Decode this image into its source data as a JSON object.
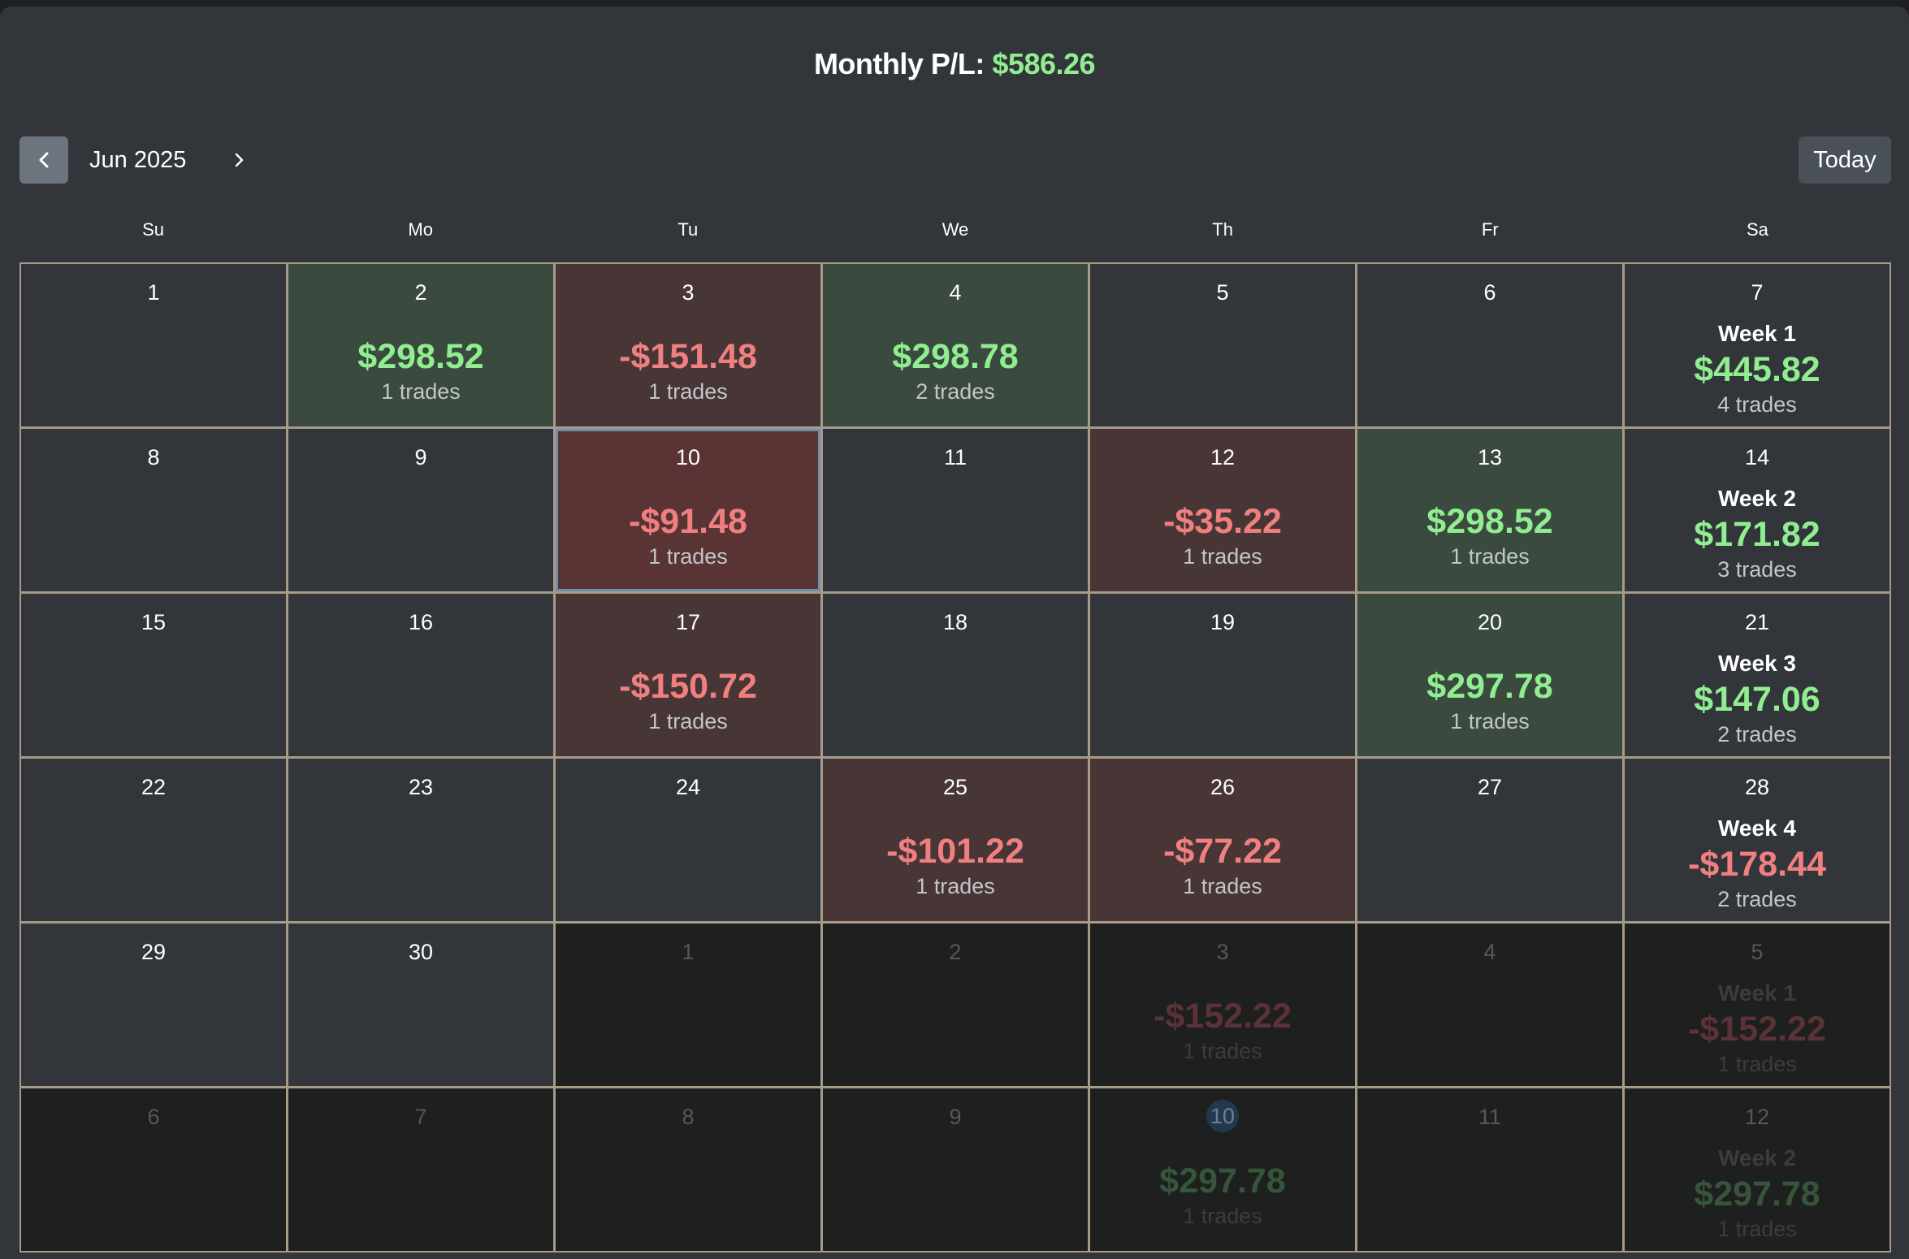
{
  "header": {
    "label": "Monthly P/L:",
    "value": "$586.26"
  },
  "toolbar": {
    "month": "Jun 2025",
    "today_label": "Today",
    "prev_icon": "chevron-left-icon",
    "next_icon": "chevron-right-icon"
  },
  "weekdays": [
    "Su",
    "Mo",
    "Tu",
    "We",
    "Th",
    "Fr",
    "Sa"
  ],
  "colors": {
    "profit": "#90ee90",
    "loss": "#f08080",
    "profit_bg": "#3b4a3e",
    "loss_bg": "#483536"
  },
  "weeks": [
    {
      "days": [
        {
          "date": "1"
        },
        {
          "date": "2",
          "pl": "$298.52",
          "trades": "1 trades",
          "type": "profit"
        },
        {
          "date": "3",
          "pl": "-$151.48",
          "trades": "1 trades",
          "type": "loss"
        },
        {
          "date": "4",
          "pl": "$298.78",
          "trades": "2 trades",
          "type": "profit"
        },
        {
          "date": "5"
        },
        {
          "date": "6"
        },
        {
          "date": "7",
          "week_label": "Week 1",
          "week_pl": "$445.82",
          "week_trades": "4 trades",
          "week_type": "profit"
        }
      ]
    },
    {
      "days": [
        {
          "date": "8"
        },
        {
          "date": "9"
        },
        {
          "date": "10",
          "pl": "-$91.48",
          "trades": "1 trades",
          "type": "loss",
          "selected": true
        },
        {
          "date": "11"
        },
        {
          "date": "12",
          "pl": "-$35.22",
          "trades": "1 trades",
          "type": "loss"
        },
        {
          "date": "13",
          "pl": "$298.52",
          "trades": "1 trades",
          "type": "profit"
        },
        {
          "date": "14",
          "week_label": "Week 2",
          "week_pl": "$171.82",
          "week_trades": "3 trades",
          "week_type": "profit"
        }
      ]
    },
    {
      "days": [
        {
          "date": "15"
        },
        {
          "date": "16"
        },
        {
          "date": "17",
          "pl": "-$150.72",
          "trades": "1 trades",
          "type": "loss"
        },
        {
          "date": "18"
        },
        {
          "date": "19"
        },
        {
          "date": "20",
          "pl": "$297.78",
          "trades": "1 trades",
          "type": "profit"
        },
        {
          "date": "21",
          "week_label": "Week 3",
          "week_pl": "$147.06",
          "week_trades": "2 trades",
          "week_type": "profit"
        }
      ]
    },
    {
      "days": [
        {
          "date": "22"
        },
        {
          "date": "23"
        },
        {
          "date": "24"
        },
        {
          "date": "25",
          "pl": "-$101.22",
          "trades": "1 trades",
          "type": "loss"
        },
        {
          "date": "26",
          "pl": "-$77.22",
          "trades": "1 trades",
          "type": "loss"
        },
        {
          "date": "27"
        },
        {
          "date": "28",
          "week_label": "Week 4",
          "week_pl": "-$178.44",
          "week_trades": "2 trades",
          "week_type": "loss"
        }
      ]
    },
    {
      "days": [
        {
          "date": "29"
        },
        {
          "date": "30"
        },
        {
          "date": "1",
          "other": true
        },
        {
          "date": "2",
          "other": true
        },
        {
          "date": "3",
          "other": true,
          "pl": "-$152.22",
          "trades": "1 trades",
          "type": "loss"
        },
        {
          "date": "4",
          "other": true
        },
        {
          "date": "5",
          "other": true,
          "week_label": "Week 1",
          "week_pl": "-$152.22",
          "week_trades": "1 trades",
          "week_type": "loss"
        }
      ]
    },
    {
      "days": [
        {
          "date": "6",
          "other": true
        },
        {
          "date": "7",
          "other": true
        },
        {
          "date": "8",
          "other": true
        },
        {
          "date": "9",
          "other": true
        },
        {
          "date": "10",
          "other": true,
          "today": true,
          "pl": "$297.78",
          "trades": "1 trades",
          "type": "profit"
        },
        {
          "date": "11",
          "other": true
        },
        {
          "date": "12",
          "other": true,
          "week_label": "Week 2",
          "week_pl": "$297.78",
          "week_trades": "1 trades",
          "week_type": "profit"
        }
      ]
    }
  ]
}
